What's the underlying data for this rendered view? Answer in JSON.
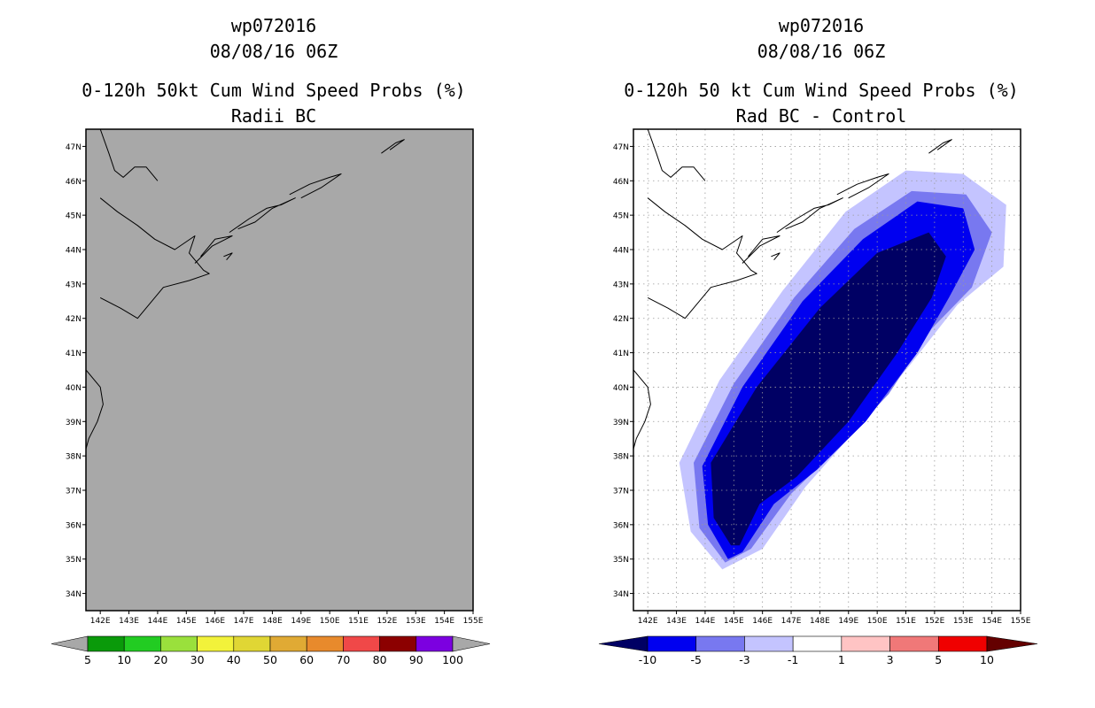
{
  "chart_data": [
    {
      "type": "heatmap",
      "panel": "left",
      "title_lines": [
        "wp072016",
        "08/08/16 06Z",
        "0-120h 50kt Cum Wind Speed Probs (%)",
        "Radii BC"
      ],
      "x_ticks": [
        "142E",
        "143E",
        "144E",
        "145E",
        "146E",
        "147E",
        "148E",
        "149E",
        "150E",
        "151E",
        "152E",
        "153E",
        "154E",
        "155E"
      ],
      "y_ticks": [
        "47N",
        "46N",
        "45N",
        "44N",
        "43N",
        "42N",
        "41N",
        "40N",
        "39N",
        "38N",
        "37N",
        "36N",
        "35N",
        "34N"
      ],
      "xlim": [
        141.5,
        155.0
      ],
      "ylim": [
        33.5,
        47.5
      ],
      "x_unit": "deg E",
      "y_unit": "deg N",
      "field": "uniformly below 5% over the entire domain (grey)",
      "colorbar": {
        "labels": [
          "5",
          "10",
          "20",
          "30",
          "40",
          "50",
          "60",
          "70",
          "80",
          "90",
          "100"
        ],
        "bin_colors": [
          "#0a9a0a",
          "#22cc22",
          "#9ae03c",
          "#f2f23a",
          "#e0d634",
          "#e0aa34",
          "#e88a2c",
          "#f04848",
          "#8c0000",
          "#7c00e0"
        ],
        "under_color": "#a8a8a8",
        "over_color": "#a8a8a8"
      },
      "background_color": "#a8a8a8"
    },
    {
      "type": "heatmap",
      "panel": "right",
      "title_lines": [
        "wp072016",
        "08/08/16 06Z",
        "0-120h 50 kt Cum Wind Speed Probs (%)",
        "Rad BC - Control"
      ],
      "x_ticks": [
        "142E",
        "143E",
        "144E",
        "145E",
        "146E",
        "147E",
        "148E",
        "149E",
        "150E",
        "151E",
        "152E",
        "153E",
        "154E",
        "155E"
      ],
      "y_ticks": [
        "47N",
        "46N",
        "45N",
        "44N",
        "43N",
        "42N",
        "41N",
        "40N",
        "39N",
        "38N",
        "37N",
        "36N",
        "35N",
        "34N"
      ],
      "xlim": [
        141.5,
        155.0
      ],
      "ylim": [
        33.5,
        47.5
      ],
      "x_unit": "deg E",
      "y_unit": "deg N",
      "grid": true,
      "field": "difference contours along storm track from ~35N 145E to ~44N 151E",
      "contour_regions": [
        {
          "level": "-1 to -3",
          "color": "#c4c4ff",
          "points": [
            [
              144.6,
              34.7
            ],
            [
              143.5,
              35.8
            ],
            [
              143.1,
              37.8
            ],
            [
              144.5,
              40.2
            ],
            [
              146.7,
              42.8
            ],
            [
              148.9,
              45.1
            ],
            [
              151.0,
              46.3
            ],
            [
              153.0,
              46.2
            ],
            [
              154.5,
              45.3
            ],
            [
              154.4,
              43.5
            ],
            [
              152.8,
              42.4
            ],
            [
              151.1,
              40.6
            ],
            [
              149.3,
              38.8
            ],
            [
              147.5,
              37.1
            ],
            [
              146.0,
              35.3
            ]
          ]
        },
        {
          "level": "-3 to -5",
          "color": "#7878f0",
          "points": [
            [
              144.7,
              34.9
            ],
            [
              143.8,
              35.9
            ],
            [
              143.6,
              37.8
            ],
            [
              145.0,
              40.1
            ],
            [
              147.1,
              42.6
            ],
            [
              149.2,
              44.6
            ],
            [
              151.2,
              45.7
            ],
            [
              153.1,
              45.6
            ],
            [
              154.0,
              44.5
            ],
            [
              153.3,
              42.9
            ],
            [
              151.9,
              41.7
            ],
            [
              150.4,
              39.8
            ],
            [
              148.6,
              38.2
            ],
            [
              147.0,
              36.9
            ],
            [
              145.6,
              35.3
            ]
          ]
        },
        {
          "level": "-5 to -10",
          "color": "#0000f0",
          "points": [
            [
              144.8,
              35.0
            ],
            [
              144.1,
              36.0
            ],
            [
              143.9,
              37.7
            ],
            [
              145.3,
              40.0
            ],
            [
              147.4,
              42.5
            ],
            [
              149.5,
              44.3
            ],
            [
              151.4,
              45.4
            ],
            [
              153.0,
              45.2
            ],
            [
              153.4,
              44.0
            ],
            [
              152.5,
              42.6
            ],
            [
              151.4,
              41.0
            ],
            [
              149.6,
              39.0
            ],
            [
              147.9,
              37.6
            ],
            [
              146.4,
              36.6
            ],
            [
              145.3,
              35.2
            ]
          ]
        },
        {
          "level": "below -10",
          "color": "#000064",
          "points": [
            [
              144.9,
              35.4
            ],
            [
              144.3,
              36.2
            ],
            [
              144.2,
              37.8
            ],
            [
              145.8,
              40.0
            ],
            [
              148.0,
              42.3
            ],
            [
              150.0,
              43.9
            ],
            [
              151.8,
              44.5
            ],
            [
              152.4,
              43.8
            ],
            [
              151.9,
              42.6
            ],
            [
              150.7,
              41.0
            ],
            [
              149.0,
              39.0
            ],
            [
              147.2,
              37.4
            ],
            [
              145.9,
              36.6
            ],
            [
              145.2,
              35.4
            ]
          ]
        }
      ],
      "colorbar": {
        "labels": [
          "-10",
          "-5",
          "-3",
          "-1",
          "1",
          "3",
          "5",
          "10"
        ],
        "bin_colors": [
          "#0000f0",
          "#7878f0",
          "#c4c4ff",
          "#ffffff",
          "#ffc4c4",
          "#f07878",
          "#f00000"
        ],
        "under_color": "#000064",
        "over_color": "#640000"
      },
      "background_color": "#ffffff"
    }
  ]
}
